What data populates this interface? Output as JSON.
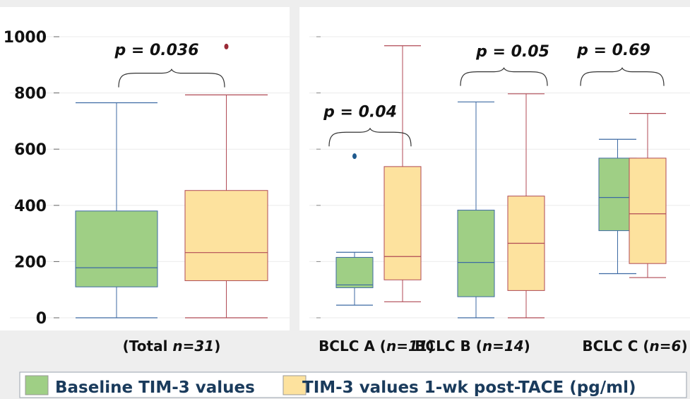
{
  "chart_data": [
    {
      "type": "box",
      "category_labels": [
        {
          "plain": "(Total ",
          "italic": "n=31",
          "tail": ")"
        }
      ],
      "y_ticks": [
        0,
        200,
        400,
        600,
        800,
        1000
      ],
      "ylim": [
        0,
        1000
      ],
      "grid": true,
      "boxes": [
        {
          "category": 0,
          "series": 0,
          "min": 0,
          "q1": 110,
          "median": 178,
          "q3": 380,
          "max": 765,
          "outliers": []
        },
        {
          "category": 0,
          "series": 1,
          "min": 0,
          "q1": 132,
          "median": 232,
          "q3": 453,
          "max": 793,
          "outliers": [
            965
          ]
        }
      ],
      "annotations": [
        {
          "text": "p = 0.036",
          "category": 0,
          "bracket_y": 820,
          "text_y": 955
        }
      ]
    },
    {
      "type": "box",
      "category_labels": [
        {
          "plain": "BCLC A (",
          "italic": "n=11",
          "tail": ")"
        },
        {
          "plain": "BCLC B (",
          "italic": "n=14",
          "tail": ")"
        },
        {
          "plain": "BCLC C (",
          "italic": "n=6",
          "tail": ")"
        }
      ],
      "y_ticks": [
        0,
        200,
        400,
        600,
        800,
        1000
      ],
      "ylim": [
        0,
        1000
      ],
      "grid": true,
      "boxes": [
        {
          "category": 0,
          "series": 0,
          "min": 45,
          "q1": 107,
          "median": 117,
          "q3": 215,
          "max": 233,
          "outliers": [
            575
          ]
        },
        {
          "category": 0,
          "series": 1,
          "min": 57,
          "q1": 135,
          "median": 218,
          "q3": 538,
          "max": 968,
          "outliers": []
        },
        {
          "category": 1,
          "series": 0,
          "min": 0,
          "q1": 75,
          "median": 197,
          "q3": 383,
          "max": 768,
          "outliers": []
        },
        {
          "category": 1,
          "series": 1,
          "min": 0,
          "q1": 97,
          "median": 265,
          "q3": 433,
          "max": 797,
          "outliers": []
        },
        {
          "category": 2,
          "series": 0,
          "min": 157,
          "q1": 310,
          "median": 428,
          "q3": 568,
          "max": 635,
          "outliers": []
        },
        {
          "category": 2,
          "series": 1,
          "min": 143,
          "q1": 193,
          "median": 370,
          "q3": 568,
          "max": 727,
          "outliers": []
        }
      ],
      "annotations": [
        {
          "text": "p = 0.04",
          "category": 0,
          "bracket_y": 610,
          "text_y": 735
        },
        {
          "text": "p = 0.05",
          "category": 1,
          "bracket_y": 825,
          "text_y": 950
        },
        {
          "text": "p = 0.69",
          "category": 2,
          "bracket_y": 825,
          "text_y": 955
        }
      ]
    }
  ],
  "series": [
    {
      "name": "Baseline TIM-3 values",
      "color": "#9fcf85",
      "edge": "#3d6aa3"
    },
    {
      "name": "TIM-3 values 1-wk post-TACE (pg/ml)",
      "color": "#fde29e",
      "edge": "#b04a55"
    }
  ],
  "colors": {
    "background": "#eeeeee",
    "panel": "#ffffff",
    "grid": "#ebebeb",
    "outlier_series0": "#1f5a8e",
    "outlier_series1": "#9a2a36"
  },
  "legend_position": "bottom"
}
